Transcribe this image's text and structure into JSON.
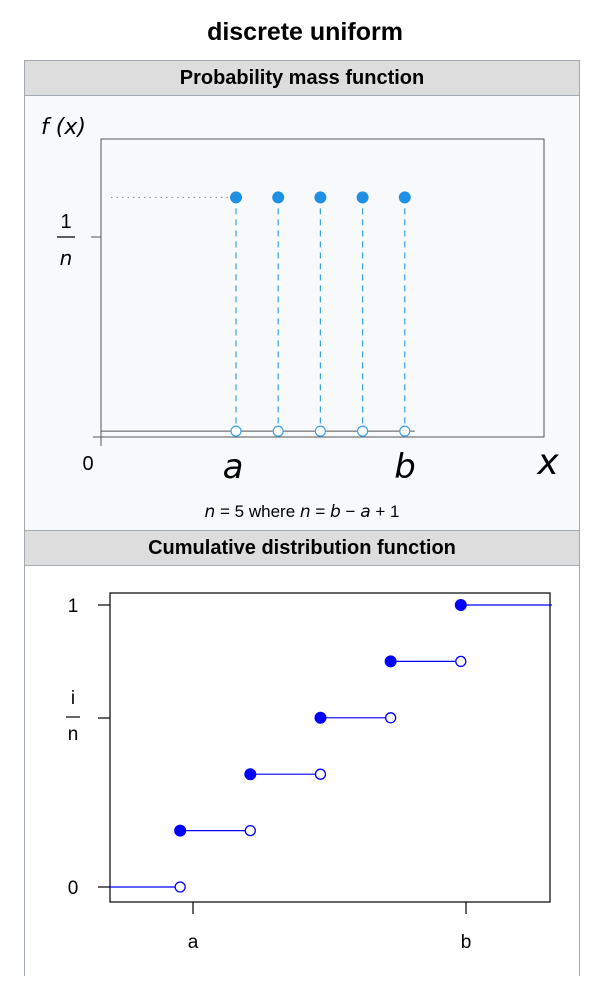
{
  "page_title": "discrete uniform",
  "pmf": {
    "header": "Probability mass function",
    "caption_parts": [
      "n",
      " = 5 where ",
      "n",
      " = ",
      "b",
      " − ",
      "a",
      " + 1"
    ]
  },
  "cdf": {
    "header": "Cumulative distribution function"
  },
  "chart_data": [
    {
      "type": "scatter",
      "title": "Probability mass function",
      "ylabel": "f (x)",
      "xlabel": "x",
      "ytick_labels": {
        "one": "1",
        "n": "n",
        "zero": "0"
      },
      "xtick_labels": {
        "a": "a",
        "b": "b"
      },
      "x": [
        1,
        2,
        3,
        4,
        5
      ],
      "y": [
        0.2,
        0.2,
        0.2,
        0.2,
        0.2
      ],
      "n": 5,
      "xlim": [
        -2.2,
        8.3
      ],
      "ylim": [
        -0.005,
        0.25
      ],
      "colors": {
        "points": "#1e90e6",
        "dash": "#3aa0e8",
        "guide": "#888888",
        "axis": "#555555"
      }
    },
    {
      "type": "line",
      "title": "Cumulative distribution function",
      "ytick_labels": {
        "one": "1",
        "i": "i",
        "n": "n",
        "zero": "0"
      },
      "xtick_labels": {
        "a": "a",
        "b": "b"
      },
      "steps": [
        {
          "x_start": 0,
          "x_end": 1,
          "y": 0
        },
        {
          "x_start": 1,
          "x_end": 2,
          "y": 0.2
        },
        {
          "x_start": 2,
          "x_end": 3,
          "y": 0.4
        },
        {
          "x_start": 3,
          "x_end": 4,
          "y": 0.6
        },
        {
          "x_start": 4,
          "x_end": 5,
          "y": 0.8
        },
        {
          "x_start": 5,
          "x_end": 6.3,
          "y": 1.0
        }
      ],
      "closed_points": [
        [
          1,
          0.2
        ],
        [
          2,
          0.4
        ],
        [
          3,
          0.6
        ],
        [
          4,
          0.8
        ],
        [
          5,
          1.0
        ]
      ],
      "open_points": [
        [
          1,
          0
        ],
        [
          2,
          0.2
        ],
        [
          3,
          0.4
        ],
        [
          4,
          0.6
        ],
        [
          5,
          0.8
        ]
      ],
      "xlim": [
        0.0,
        6.3
      ],
      "ylim": [
        0,
        1
      ],
      "colors": {
        "line": "#0000ff",
        "axis": "#000000"
      }
    }
  ]
}
